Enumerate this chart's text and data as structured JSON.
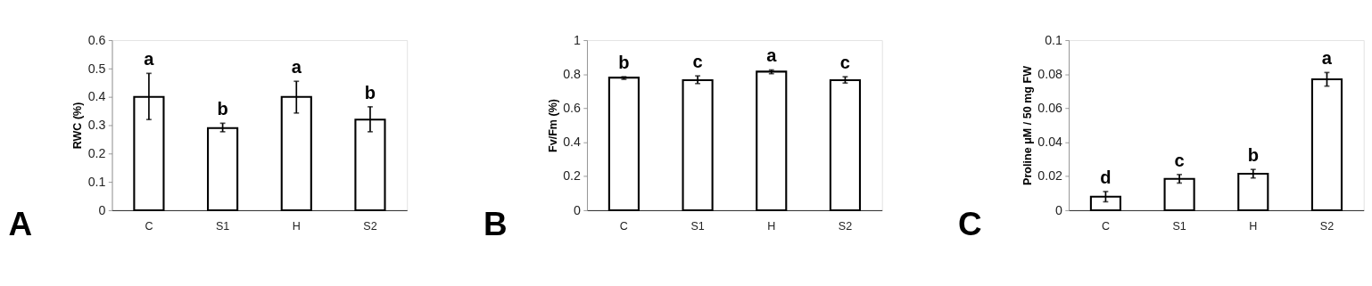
{
  "chart_data": [
    {
      "type": "bar",
      "title": "A",
      "ylabel": "RWC (%)",
      "categories": [
        "C",
        "S1",
        "H",
        "S2"
      ],
      "values": [
        0.4,
        0.29,
        0.4,
        0.32
      ],
      "color": "#ffffff",
      "errors": [
        [
          0.32,
          0.483
        ],
        [
          0.277,
          0.307
        ],
        [
          0.343,
          0.455
        ],
        [
          0.277,
          0.365
        ]
      ],
      "ylim": [
        0,
        0.6
      ],
      "yticks": [
        0,
        0.1,
        0.2,
        0.3,
        0.4,
        0.5,
        0.6
      ],
      "grid": false,
      "annotations": [
        "a",
        "b",
        "a",
        "b"
      ]
    },
    {
      "type": "bar",
      "title": "B",
      "ylabel": "Fv/Fm (%)",
      "categories": [
        "C",
        "S1",
        "H",
        "S2"
      ],
      "values": [
        0.78,
        0.765,
        0.815,
        0.765
      ],
      "color": "#ffffff",
      "errors": [
        [
          0.77,
          0.785
        ],
        [
          0.745,
          0.79
        ],
        [
          0.803,
          0.825
        ],
        [
          0.748,
          0.785
        ]
      ],
      "ylim": [
        0,
        1
      ],
      "yticks": [
        0,
        0.2,
        0.4,
        0.6,
        0.8,
        1
      ],
      "grid": false,
      "annotations": [
        "b",
        "c",
        "a",
        "c"
      ]
    },
    {
      "type": "bar",
      "title": "C",
      "ylabel": "Proline μM / 50 mg FW",
      "categories": [
        "C",
        "S1",
        "H",
        "S2"
      ],
      "values": [
        0.008,
        0.0185,
        0.0215,
        0.077
      ],
      "color": "#ffffff",
      "errors": [
        [
          0.005,
          0.011
        ],
        [
          0.016,
          0.021
        ],
        [
          0.019,
          0.024
        ],
        [
          0.073,
          0.081
        ]
      ],
      "ylim": [
        0,
        0.1
      ],
      "yticks": [
        0,
        0.02,
        0.04,
        0.06,
        0.08,
        0.1
      ],
      "grid": false,
      "annotations": [
        "d",
        "c",
        "b",
        "a"
      ]
    }
  ]
}
